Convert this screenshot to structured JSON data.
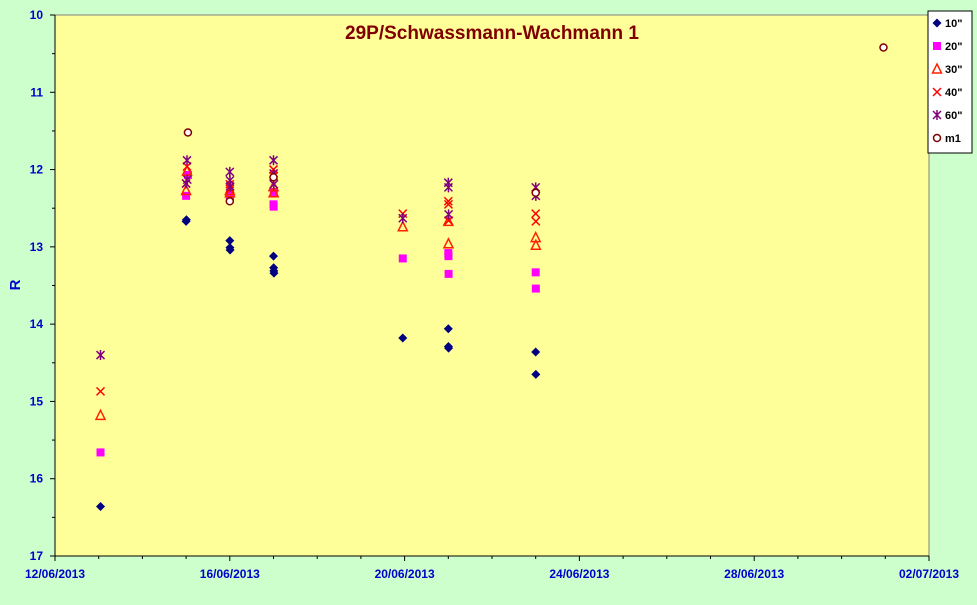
{
  "chart_data": {
    "type": "scatter",
    "title": "29P/Schwassmann-Wachmann  1",
    "xlabel": "",
    "ylabel": "R",
    "y_reversed": true,
    "ylim": [
      10,
      17
    ],
    "yticks": [
      "10",
      "11",
      "12",
      "13",
      "14",
      "15",
      "16",
      "17"
    ],
    "xlim": [
      "2013-06-12",
      "2013-07-02"
    ],
    "xticks": [
      "12/06/2013",
      "16/06/2013",
      "20/06/2013",
      "24/06/2013",
      "28/06/2013",
      "02/07/2013"
    ],
    "grid": false,
    "legend_position": "top-right",
    "colors": {
      "page_background": "#ccffcc",
      "plot_background": "#ffff99",
      "title": "#800000",
      "axis_labels": "#0000cc"
    },
    "series": [
      {
        "name": "10\"",
        "marker": "diamond",
        "color": "#000080",
        "points": [
          {
            "x": "2013-06-13 01:00",
            "y": 16.36
          },
          {
            "x": "2013-06-15 00:00",
            "y": 12.67
          },
          {
            "x": "2013-06-15 00:10",
            "y": 12.65
          },
          {
            "x": "2013-06-16 00:00",
            "y": 12.92
          },
          {
            "x": "2013-06-16 00:05",
            "y": 13.01
          },
          {
            "x": "2013-06-16 00:10",
            "y": 13.04
          },
          {
            "x": "2013-06-17 00:00",
            "y": 13.12
          },
          {
            "x": "2013-06-17 00:05",
            "y": 13.27
          },
          {
            "x": "2013-06-17 00:10",
            "y": 13.31
          },
          {
            "x": "2013-06-17 00:15",
            "y": 13.34
          },
          {
            "x": "2013-06-19 23:00",
            "y": 14.18
          },
          {
            "x": "2013-06-21 00:00",
            "y": 14.06
          },
          {
            "x": "2013-06-21 00:05",
            "y": 14.29
          },
          {
            "x": "2013-06-21 00:10",
            "y": 14.31
          },
          {
            "x": "2013-06-23 00:00",
            "y": 14.36
          },
          {
            "x": "2013-06-23 00:05",
            "y": 14.65
          }
        ]
      },
      {
        "name": "20\"",
        "marker": "square",
        "color": "#ff00ff",
        "points": [
          {
            "x": "2013-06-13 01:00",
            "y": 15.66
          },
          {
            "x": "2013-06-15 00:00",
            "y": 12.34
          },
          {
            "x": "2013-06-15 01:00",
            "y": 12.07
          },
          {
            "x": "2013-06-16 00:00",
            "y": 12.33
          },
          {
            "x": "2013-06-16 00:05",
            "y": 12.36
          },
          {
            "x": "2013-06-17 00:00",
            "y": 12.45
          },
          {
            "x": "2013-06-17 00:05",
            "y": 12.48
          },
          {
            "x": "2013-06-17 00:10",
            "y": 12.29
          },
          {
            "x": "2013-06-19 23:00",
            "y": 13.15
          },
          {
            "x": "2013-06-21 00:00",
            "y": 13.08
          },
          {
            "x": "2013-06-21 00:05",
            "y": 13.12
          },
          {
            "x": "2013-06-21 00:10",
            "y": 13.35
          },
          {
            "x": "2013-06-23 00:00",
            "y": 13.33
          },
          {
            "x": "2013-06-23 00:05",
            "y": 13.54
          }
        ]
      },
      {
        "name": "30\"",
        "marker": "triangle",
        "color": "#ff2200",
        "points": [
          {
            "x": "2013-06-13 01:00",
            "y": 15.18
          },
          {
            "x": "2013-06-15 00:00",
            "y": 12.27
          },
          {
            "x": "2013-06-15 00:30",
            "y": 12.02
          },
          {
            "x": "2013-06-16 00:00",
            "y": 12.27
          },
          {
            "x": "2013-06-16 00:05",
            "y": 12.3
          },
          {
            "x": "2013-06-17 00:00",
            "y": 12.22
          },
          {
            "x": "2013-06-17 00:05",
            "y": 12.3
          },
          {
            "x": "2013-06-19 23:00",
            "y": 12.74
          },
          {
            "x": "2013-06-21 00:00",
            "y": 12.67
          },
          {
            "x": "2013-06-21 00:05",
            "y": 12.96
          },
          {
            "x": "2013-06-23 00:00",
            "y": 12.88
          },
          {
            "x": "2013-06-23 00:05",
            "y": 12.98
          }
        ]
      },
      {
        "name": "40\"",
        "marker": "x",
        "color": "#ff0000",
        "points": [
          {
            "x": "2013-06-13 01:00",
            "y": 14.87
          },
          {
            "x": "2013-06-15 00:00",
            "y": 12.18
          },
          {
            "x": "2013-06-15 00:30",
            "y": 11.96
          },
          {
            "x": "2013-06-16 00:00",
            "y": 12.19
          },
          {
            "x": "2013-06-16 00:05",
            "y": 12.25
          },
          {
            "x": "2013-06-17 00:00",
            "y": 12.0
          },
          {
            "x": "2013-06-17 00:05",
            "y": 12.08
          },
          {
            "x": "2013-06-17 00:10",
            "y": 12.19
          },
          {
            "x": "2013-06-19 23:00",
            "y": 12.57
          },
          {
            "x": "2013-06-21 00:00",
            "y": 12.41
          },
          {
            "x": "2013-06-21 00:05",
            "y": 12.45
          },
          {
            "x": "2013-06-21 00:10",
            "y": 12.66
          },
          {
            "x": "2013-06-23 00:00",
            "y": 12.57
          },
          {
            "x": "2013-06-23 00:05",
            "y": 12.67
          }
        ]
      },
      {
        "name": "60\"",
        "marker": "star",
        "color": "#800080",
        "points": [
          {
            "x": "2013-06-13 01:00",
            "y": 14.4
          },
          {
            "x": "2013-06-15 00:00",
            "y": 12.18
          },
          {
            "x": "2013-06-15 00:30",
            "y": 11.88
          },
          {
            "x": "2013-06-15 00:40",
            "y": 12.13
          },
          {
            "x": "2013-06-16 00:00",
            "y": 12.03
          },
          {
            "x": "2013-06-16 00:05",
            "y": 12.14
          },
          {
            "x": "2013-06-16 00:10",
            "y": 12.22
          },
          {
            "x": "2013-06-17 00:00",
            "y": 11.88
          },
          {
            "x": "2013-06-17 00:05",
            "y": 12.05
          },
          {
            "x": "2013-06-17 00:10",
            "y": 12.19
          },
          {
            "x": "2013-06-19 23:00",
            "y": 12.63
          },
          {
            "x": "2013-06-21 00:00",
            "y": 12.17
          },
          {
            "x": "2013-06-21 00:05",
            "y": 12.23
          },
          {
            "x": "2013-06-21 00:10",
            "y": 12.58
          },
          {
            "x": "2013-06-23 00:00",
            "y": 12.23
          },
          {
            "x": "2013-06-23 00:05",
            "y": 12.34
          }
        ]
      },
      {
        "name": "m1",
        "marker": "circle",
        "color": "#800000",
        "points": [
          {
            "x": "2013-06-15 01:00",
            "y": 11.52
          },
          {
            "x": "2013-06-16 00:00",
            "y": 12.41
          },
          {
            "x": "2013-06-17 00:00",
            "y": 12.1
          },
          {
            "x": "2013-06-23 00:00",
            "y": 12.3
          },
          {
            "x": "2013-06-30 23:00",
            "y": 10.42
          }
        ]
      }
    ]
  }
}
